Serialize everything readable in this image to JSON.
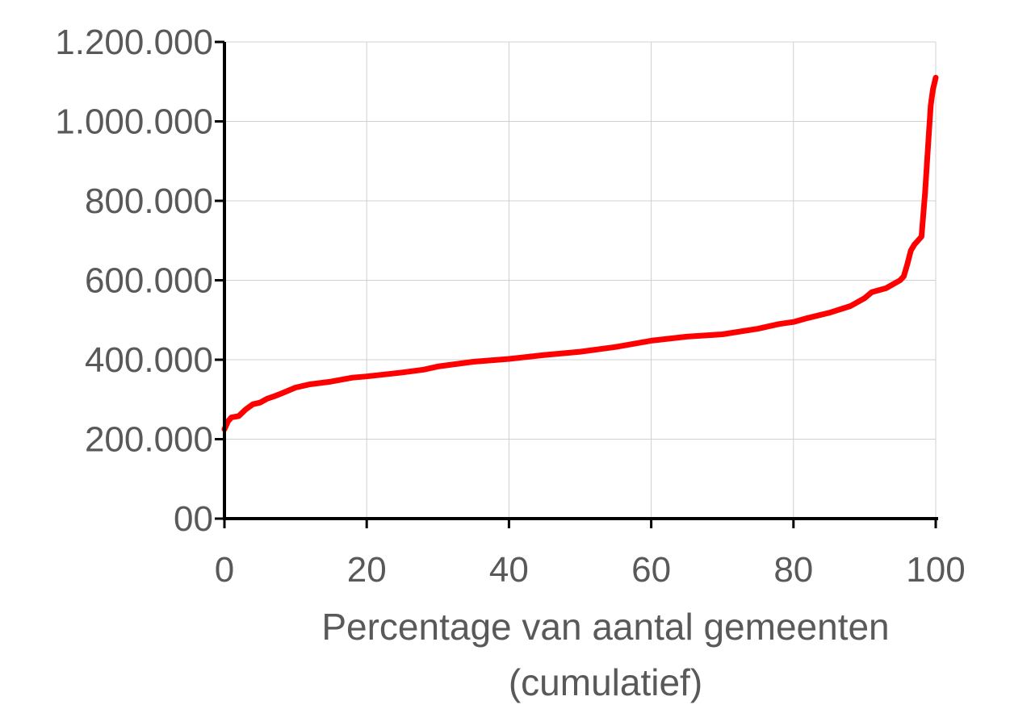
{
  "chart_data": {
    "type": "line",
    "title": "",
    "xlabel": "Percentage van aantal gemeenten",
    "xlabel_line2": "(cumulatief)",
    "ylabel": "",
    "xlim": [
      0,
      100
    ],
    "ylim": [
      0,
      1200000
    ],
    "grid": true,
    "x_ticks": [
      0,
      20,
      40,
      60,
      80,
      100
    ],
    "x_tick_labels": [
      "0",
      "20",
      "40",
      "60",
      "80",
      "100"
    ],
    "y_ticks": [
      0,
      200000,
      400000,
      600000,
      800000,
      1000000,
      1200000
    ],
    "y_tick_labels": [
      "00",
      "200.000",
      "400.000",
      "600.000",
      "800.000",
      "1.000.000",
      "1.200.000"
    ],
    "colors": {
      "line": "#ff0000",
      "grid": "#d0d0d0",
      "axis": "#000000",
      "text": "#595959"
    },
    "series": [
      {
        "x": [
          0,
          0.5,
          1,
          2,
          3,
          4,
          5,
          6,
          7,
          8,
          10,
          12,
          15,
          18,
          20,
          25,
          28,
          30,
          35,
          40,
          45,
          50,
          55,
          60,
          65,
          70,
          75,
          78,
          80,
          82,
          85,
          88,
          90,
          91,
          93,
          94,
          95,
          95.5,
          96,
          96.5,
          97,
          97.5,
          98,
          98.5,
          99,
          99.3,
          99.6,
          100
        ],
        "y": [
          225000,
          245000,
          255000,
          258000,
          275000,
          288000,
          292000,
          302000,
          308000,
          315000,
          330000,
          338000,
          345000,
          355000,
          358000,
          368000,
          375000,
          383000,
          395000,
          402000,
          412000,
          420000,
          432000,
          448000,
          458000,
          464000,
          478000,
          490000,
          495000,
          505000,
          518000,
          535000,
          555000,
          570000,
          580000,
          590000,
          600000,
          610000,
          640000,
          675000,
          690000,
          700000,
          710000,
          820000,
          960000,
          1040000,
          1080000,
          1110000
        ]
      }
    ]
  }
}
